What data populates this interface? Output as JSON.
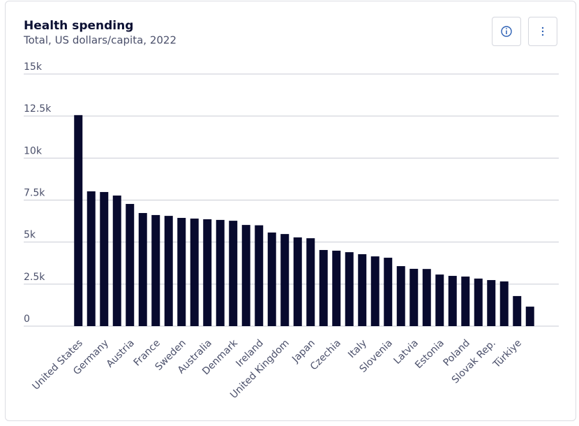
{
  "chart_data": {
    "type": "bar",
    "title": "Health spending",
    "subtitle": "Total, US dollars/capita, 2022",
    "categories": [
      "United States",
      null,
      "Germany",
      null,
      "Austria",
      null,
      "France",
      null,
      "Sweden",
      null,
      "Australia",
      null,
      "Denmark",
      null,
      "Ireland",
      null,
      "United Kingdom",
      null,
      "Japan",
      null,
      "Czechia",
      null,
      "Italy",
      null,
      "Slovenia",
      null,
      "Latvia",
      null,
      "Estonia",
      null,
      "Poland",
      null,
      "Slovak Rep.",
      null,
      "Türkiye",
      null
    ],
    "values": [
      12555,
      8020,
      7980,
      7770,
      7270,
      6730,
      6610,
      6560,
      6440,
      6400,
      6360,
      6320,
      6270,
      6020,
      6000,
      5570,
      5480,
      5280,
      5230,
      4530,
      4490,
      4400,
      4280,
      4150,
      4070,
      3570,
      3410,
      3400,
      3070,
      2990,
      2950,
      2830,
      2740,
      2660,
      1790,
      1160
    ],
    "color": "#080a2e",
    "ylim": [
      0,
      15000
    ],
    "yticks": [
      0,
      {
        "value": 2500,
        "label": "2.5k"
      },
      {
        "value": 5000,
        "label": "5k"
      },
      {
        "value": 7500,
        "label": "7.5k"
      },
      {
        "value": 10000,
        "label": "10k"
      },
      {
        "value": 12500,
        "label": "12.5k"
      },
      {
        "value": 15000,
        "label": "15k"
      }
    ],
    "grid": true
  }
}
